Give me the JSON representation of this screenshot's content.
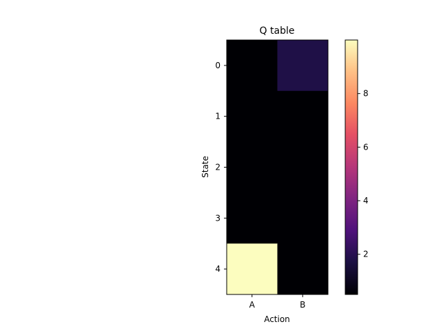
{
  "chart_data": {
    "type": "heatmap",
    "title": "Q table",
    "xlabel": "Action",
    "ylabel": "State",
    "x_categories": [
      "A",
      "B"
    ],
    "y_categories": [
      "0",
      "1",
      "2",
      "3",
      "4"
    ],
    "values": [
      [
        0.5,
        1.8
      ],
      [
        0.5,
        0.5
      ],
      [
        0.5,
        0.5
      ],
      [
        0.5,
        0.5
      ],
      [
        10.0,
        0.5
      ]
    ],
    "colormap": "magma",
    "color_range": [
      0.5,
      10.0
    ],
    "colorbar_ticks": [
      "2",
      "4",
      "6",
      "8"
    ],
    "grid": false,
    "colorbar_position": "right"
  }
}
